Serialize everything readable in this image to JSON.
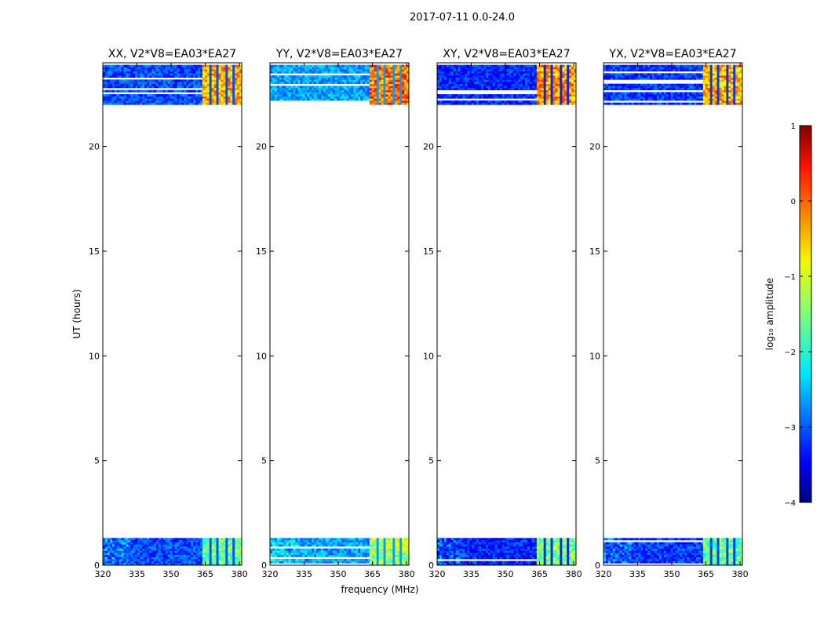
{
  "figure": {
    "suptitle": "2017-07-11 0.0-24.0",
    "ylabel": "UT (hours)",
    "xlabel": "frequency (MHz)",
    "colorbar_label": "log₁₀ amplitude"
  },
  "chart_data": {
    "type": "heatmap",
    "xlim": [
      320,
      381
    ],
    "ylim": [
      0,
      24
    ],
    "xticks": [
      320,
      335,
      350,
      365,
      380
    ],
    "yticks": [
      0,
      5,
      10,
      15,
      20
    ],
    "colorbar": {
      "range": [
        -4,
        1
      ],
      "ticks": [
        1,
        0,
        -1,
        -2,
        -3,
        -4
      ],
      "tick_labels": [
        "1",
        "0",
        "−1",
        "−2",
        "−3",
        "−4"
      ],
      "colormap": "jet"
    },
    "observed_time_ranges_hours": [
      [
        0,
        1.3
      ],
      [
        22.0,
        23.9
      ]
    ],
    "high_power_freq_range_mhz": [
      363,
      380
    ],
    "panels": [
      {
        "title": "XX, V2*V8=EA03*EA27",
        "background_level": -3.0,
        "band_level": -0.9
      },
      {
        "title": "YY, V2*V8=EA03*EA27",
        "background_level": -2.6,
        "band_level": -0.6
      },
      {
        "title": "XY, V2*V8=EA03*EA27",
        "background_level": -3.2,
        "band_level": -0.8
      },
      {
        "title": "YX, V2*V8=EA03*EA27",
        "background_level": -3.1,
        "band_level": -0.9
      }
    ]
  }
}
